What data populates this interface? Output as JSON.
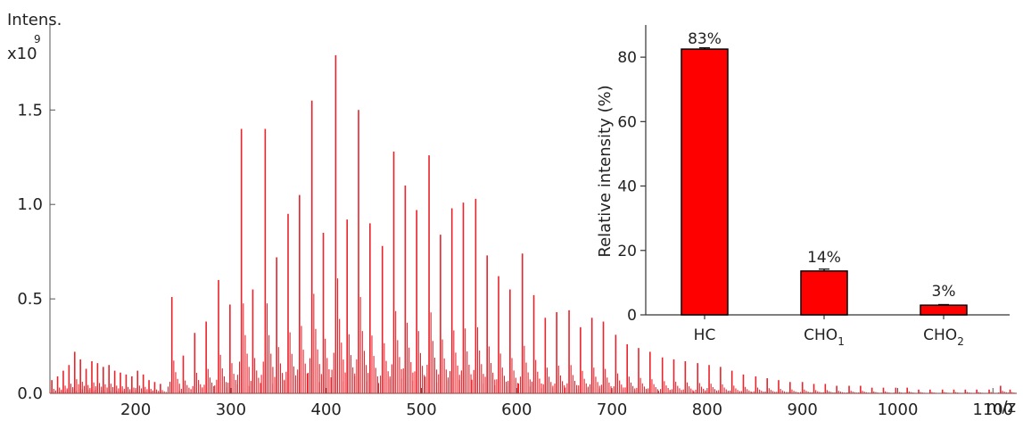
{
  "chart_data": [
    {
      "type": "line",
      "kind": "mass-spectrum",
      "title": "",
      "ylabel": "Intens.",
      "y_multiplier": "x10",
      "y_exponent": "9",
      "xlabel": "m/z",
      "xlim": [
        110,
        1125
      ],
      "ylim": [
        0,
        1.95
      ],
      "x_ticks": [
        200,
        300,
        400,
        500,
        600,
        700,
        800,
        900,
        1000,
        1100
      ],
      "y_ticks": [
        0.0,
        0.5,
        1.0,
        1.5
      ],
      "y_tick_labels": [
        "0.0",
        "0.5",
        "1.0",
        "1.5"
      ],
      "grid": false,
      "color": "#e8232b",
      "series": [
        {
          "peaks": [
            [
              112,
              0.07
            ],
            [
              118,
              0.09
            ],
            [
              124,
              0.12
            ],
            [
              130,
              0.15
            ],
            [
              136,
              0.22
            ],
            [
              142,
              0.18
            ],
            [
              148,
              0.13
            ],
            [
              154,
              0.17
            ],
            [
              160,
              0.16
            ],
            [
              166,
              0.14
            ],
            [
              172,
              0.15
            ],
            [
              178,
              0.12
            ],
            [
              184,
              0.11
            ],
            [
              190,
              0.1
            ],
            [
              196,
              0.09
            ],
            [
              202,
              0.12
            ],
            [
              208,
              0.1
            ],
            [
              214,
              0.07
            ],
            [
              220,
              0.06
            ],
            [
              226,
              0.05
            ],
            [
              238,
              0.51
            ],
            [
              250,
              0.2
            ],
            [
              262,
              0.32
            ],
            [
              274,
              0.38
            ],
            [
              287,
              0.6
            ],
            [
              299,
              0.47
            ],
            [
              311,
              1.4
            ],
            [
              323,
              0.55
            ],
            [
              336,
              1.4
            ],
            [
              348,
              0.72
            ],
            [
              360,
              0.95
            ],
            [
              372,
              1.05
            ],
            [
              385,
              1.55
            ],
            [
              397,
              0.85
            ],
            [
              410,
              1.79
            ],
            [
              422,
              0.92
            ],
            [
              434,
              1.5
            ],
            [
              446,
              0.9
            ],
            [
              459,
              0.78
            ],
            [
              471,
              1.28
            ],
            [
              483,
              1.1
            ],
            [
              495,
              0.97
            ],
            [
              508,
              1.26
            ],
            [
              520,
              0.84
            ],
            [
              532,
              0.98
            ],
            [
              544,
              1.01
            ],
            [
              557,
              1.03
            ],
            [
              569,
              0.73
            ],
            [
              581,
              0.62
            ],
            [
              593,
              0.55
            ],
            [
              606,
              0.74
            ],
            [
              618,
              0.52
            ],
            [
              630,
              0.4
            ],
            [
              642,
              0.43
            ],
            [
              655,
              0.44
            ],
            [
              667,
              0.35
            ],
            [
              679,
              0.4
            ],
            [
              691,
              0.38
            ],
            [
              704,
              0.31
            ],
            [
              716,
              0.26
            ],
            [
              728,
              0.24
            ],
            [
              740,
              0.22
            ],
            [
              753,
              0.19
            ],
            [
              765,
              0.18
            ],
            [
              777,
              0.17
            ],
            [
              790,
              0.16
            ],
            [
              802,
              0.15
            ],
            [
              814,
              0.14
            ],
            [
              826,
              0.12
            ],
            [
              838,
              0.1
            ],
            [
              851,
              0.09
            ],
            [
              863,
              0.08
            ],
            [
              875,
              0.07
            ],
            [
              887,
              0.06
            ],
            [
              900,
              0.06
            ],
            [
              912,
              0.05
            ],
            [
              924,
              0.05
            ],
            [
              936,
              0.04
            ],
            [
              949,
              0.04
            ],
            [
              961,
              0.04
            ],
            [
              973,
              0.03
            ],
            [
              985,
              0.03
            ],
            [
              998,
              0.03
            ],
            [
              1010,
              0.03
            ],
            [
              1022,
              0.02
            ],
            [
              1034,
              0.02
            ],
            [
              1047,
              0.02
            ],
            [
              1059,
              0.02
            ],
            [
              1071,
              0.02
            ],
            [
              1083,
              0.02
            ],
            [
              1096,
              0.02
            ],
            [
              1108,
              0.04
            ],
            [
              1118,
              0.02
            ]
          ]
        }
      ]
    },
    {
      "type": "bar",
      "title": "",
      "categories": [
        "HC",
        "CHO1",
        "CHO2"
      ],
      "category_labels": [
        {
          "base": "HC",
          "sub": ""
        },
        {
          "base": "CHO",
          "sub": "1"
        },
        {
          "base": "CHO",
          "sub": "2"
        }
      ],
      "values": [
        82.5,
        13.6,
        3.0
      ],
      "errors": [
        0.4,
        0.6,
        0.2
      ],
      "data_labels": [
        "83%",
        "14%",
        "3%"
      ],
      "ylabel": "Relative intensity (%)",
      "xlabel": "",
      "ylim": [
        0,
        90
      ],
      "y_ticks": [
        0,
        20,
        40,
        60,
        80
      ],
      "bar_color": "#ff0000",
      "edge_color": "#000000",
      "grid": false
    }
  ]
}
